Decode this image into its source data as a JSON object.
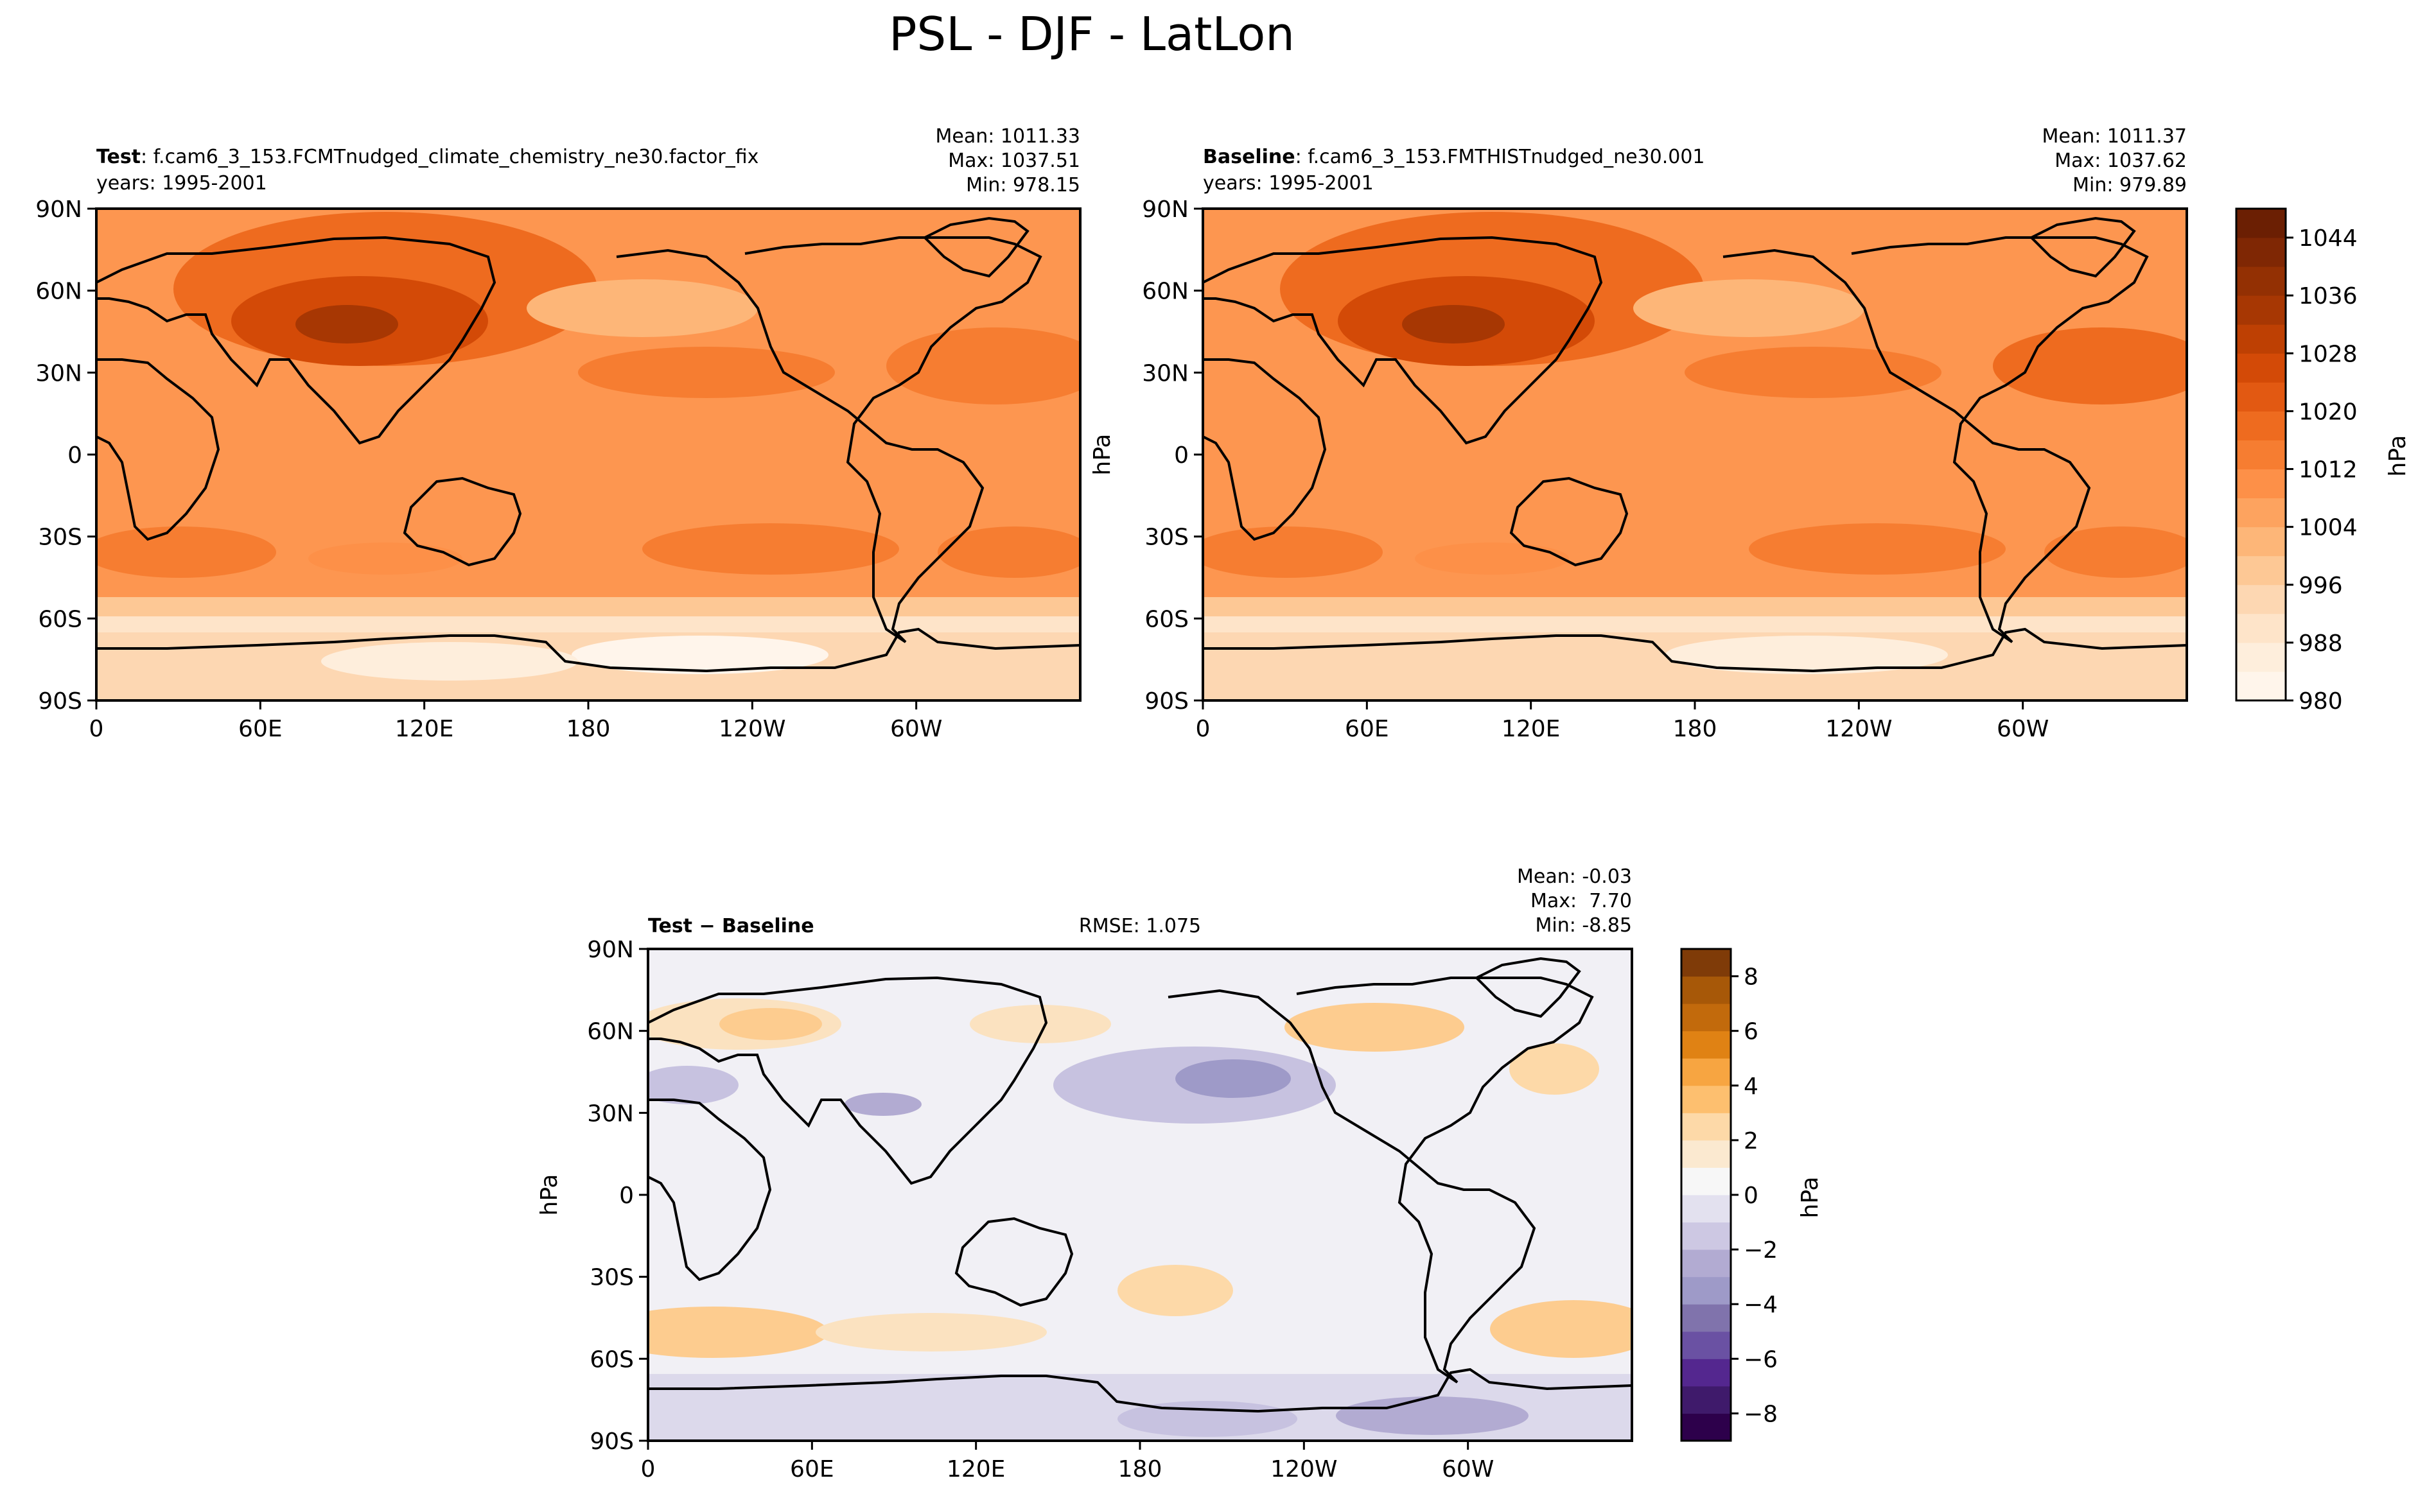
{
  "figure": {
    "title": "PSL - DJF - LatLon"
  },
  "chart_data": [
    {
      "type": "heatmap",
      "panel": "test",
      "label_bold": "Test",
      "label_text": ": f.cam6_3_153.FCMTnudged_climate_chemistry_ne30.factor_fix",
      "years": "years: 1995-2001",
      "stats": {
        "mean": "Mean: 1011.33",
        "max": "Max: 1037.51",
        "min": "Min: 978.15"
      },
      "ylabel": "",
      "x_ticks": [
        "0",
        "60E",
        "120E",
        "180",
        "120W",
        "60W"
      ],
      "y_ticks": [
        "90N",
        "60N",
        "30N",
        "0",
        "30S",
        "60S",
        "90S"
      ],
      "xlim": [
        0,
        360
      ],
      "ylim": [
        -90,
        90
      ],
      "colormap": "Oranges",
      "stats_values": {
        "mean": 1011.33,
        "max": 1037.51,
        "min": 978.15
      }
    },
    {
      "type": "heatmap",
      "panel": "baseline",
      "label_bold": "Baseline",
      "label_text": ": f.cam6_3_153.FMTHISTnudged_ne30.001",
      "years": "years: 1995-2001",
      "stats": {
        "mean": "Mean: 1011.37",
        "max": "Max: 1037.62",
        "min": "Min: 979.89"
      },
      "ylabel": "hPa",
      "x_ticks": [
        "0",
        "60E",
        "120E",
        "180",
        "120W",
        "60W"
      ],
      "y_ticks": [
        "90N",
        "60N",
        "30N",
        "0",
        "30S",
        "60S",
        "90S"
      ],
      "xlim": [
        0,
        360
      ],
      "ylim": [
        -90,
        90
      ],
      "colormap": "Oranges",
      "stats_values": {
        "mean": 1011.37,
        "max": 1037.62,
        "min": 979.89
      }
    },
    {
      "type": "heatmap",
      "panel": "difference",
      "label_bold": "Test − Baseline",
      "rmse": "RMSE: 1.075",
      "stats": {
        "mean": "Mean: -0.03",
        "max": "Max:  7.70",
        "min": "Min: -8.85"
      },
      "ylabel": "hPa",
      "x_ticks": [
        "0",
        "60E",
        "120E",
        "180",
        "120W",
        "60W"
      ],
      "y_ticks": [
        "90N",
        "60N",
        "30N",
        "0",
        "30S",
        "60S",
        "90S"
      ],
      "xlim": [
        0,
        360
      ],
      "ylim": [
        -90,
        90
      ],
      "colormap": "PuOr_r",
      "stats_values": {
        "mean": -0.03,
        "max": 7.7,
        "min": -8.85,
        "rmse": 1.075
      }
    }
  ],
  "colorbars": {
    "top": {
      "label": "hPa",
      "ticks": [
        "980",
        "988",
        "996",
        "1004",
        "1012",
        "1020",
        "1028",
        "1036",
        "1044"
      ],
      "tick_values": [
        980,
        988,
        996,
        1004,
        1012,
        1020,
        1028,
        1036,
        1044
      ],
      "range": [
        980,
        1048
      ],
      "levels": 17,
      "colors": [
        "#fff5eb",
        "#feeedc",
        "#fee4c9",
        "#fdd7b2",
        "#fdc895",
        "#fdb678",
        "#fda35f",
        "#fd9048",
        "#f67d31",
        "#ee6b1f",
        "#e25912",
        "#d34a07",
        "#be4003",
        "#a73703",
        "#933003",
        "#7f2704",
        "#6b1f03"
      ]
    },
    "bottom": {
      "label": "hPa",
      "ticks": [
        "−8",
        "−6",
        "−4",
        "−2",
        "0",
        "2",
        "4",
        "6",
        "8"
      ],
      "tick_values": [
        -8,
        -6,
        -4,
        -2,
        0,
        2,
        4,
        6,
        8
      ],
      "range": [
        -9,
        9
      ],
      "levels": 18,
      "colors": [
        "#2d004b",
        "#3f1a6b",
        "#54278f",
        "#6a51a3",
        "#8073ac",
        "#9e9ac8",
        "#b2abd2",
        "#cdc8e3",
        "#e3e1ef",
        "#f7f7f7",
        "#fbe9d0",
        "#fdd9a8",
        "#fdbf6f",
        "#f7a541",
        "#e08214",
        "#c26a0c",
        "#a75808",
        "#7f3b08"
      ]
    }
  }
}
